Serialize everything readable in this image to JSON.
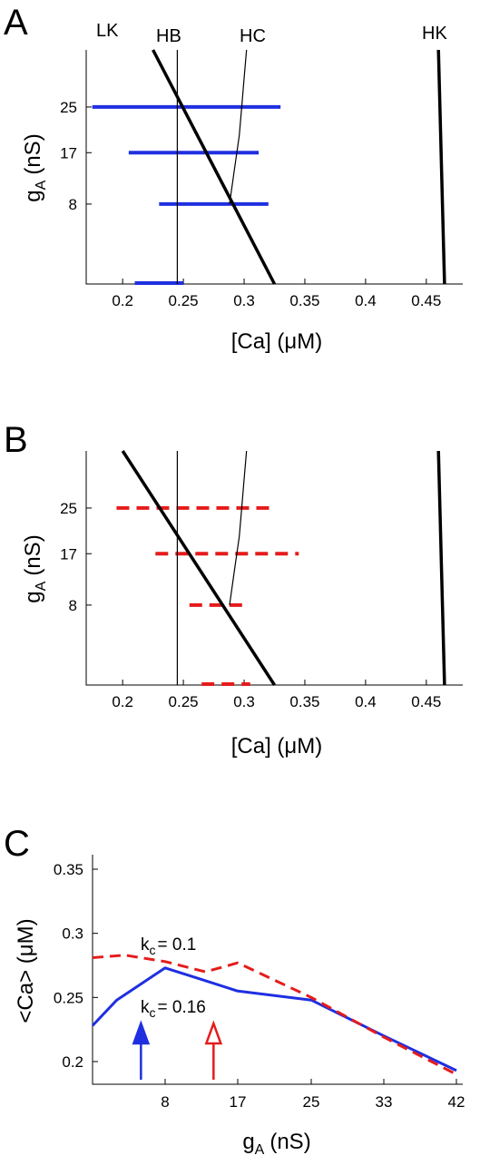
{
  "panels": {
    "A": {
      "letter": "A",
      "xlabel": "[Ca] (μM)",
      "ylabel_main": "g",
      "ylabel_sub": "A",
      "ylabel_unit": "(nS)",
      "xlim": [
        0.17,
        0.48
      ],
      "xticks": [
        "0.2",
        "0.25",
        "0.3",
        "0.35",
        "0.4",
        "0.45"
      ],
      "ylim": [
        -6,
        35
      ],
      "yticks": [
        "25",
        "17",
        "8"
      ],
      "curve_labels": {
        "LK": "LK",
        "HB": "HB",
        "HC": "HC",
        "HK": "HK"
      }
    },
    "B": {
      "letter": "B",
      "xlabel": "[Ca] (μM)",
      "ylabel_main": "g",
      "ylabel_sub": "A",
      "ylabel_unit": "(nS)",
      "xlim": [
        0.17,
        0.48
      ],
      "xticks": [
        "0.2",
        "0.25",
        "0.3",
        "0.35",
        "0.4",
        "0.45"
      ],
      "ylim": [
        -6,
        35
      ],
      "yticks": [
        "25",
        "17",
        "8"
      ]
    },
    "C": {
      "letter": "C",
      "xlabel_main": "g",
      "xlabel_sub": "A",
      "xlabel_unit": "(nS)",
      "ylabel": "<Ca> (μM)",
      "xticks": [
        "8",
        "17",
        "25",
        "33",
        "42"
      ],
      "yticks": [
        "0.35",
        "0.3",
        "0.25",
        "0.2"
      ],
      "kc_label_1_main": "k",
      "kc_label_1_sub": "c",
      "kc_label_1_value": "= 0.1",
      "kc_label_2_main": "k",
      "kc_label_2_sub": "c",
      "kc_label_2_value": "= 0.16"
    }
  },
  "colors": {
    "blue": "#1f2fe0",
    "red": "#e51c1c",
    "black": "#000000"
  },
  "chart_data": [
    {
      "type": "line",
      "panel": "A",
      "title": "",
      "xlabel": "[Ca] (μM)",
      "ylabel": "gA (nS)",
      "xlim": [
        0.17,
        0.48
      ],
      "ylim": [
        -6,
        35
      ],
      "grid": false,
      "curves": [
        {
          "name": "LK",
          "weight": "thick",
          "x": [
            0.325,
            0.225
          ],
          "y": [
            -6,
            35
          ]
        },
        {
          "name": "HB",
          "weight": "thin",
          "x": [
            0.245,
            0.245
          ],
          "y": [
            -6,
            35
          ]
        },
        {
          "name": "HC",
          "weight": "thin",
          "x": [
            0.288,
            0.292,
            0.296,
            0.298,
            0.3,
            0.302
          ],
          "y": [
            8,
            14,
            20,
            25,
            30,
            35
          ]
        },
        {
          "name": "HK",
          "weight": "thick",
          "x": [
            0.465,
            0.46
          ],
          "y": [
            -6,
            35
          ]
        }
      ],
      "bars": [
        {
          "y": 25,
          "x_start": 0.175,
          "x_end": 0.33
        },
        {
          "y": 17,
          "x_start": 0.205,
          "x_end": 0.312
        },
        {
          "y": 8,
          "x_start": 0.23,
          "x_end": 0.32
        },
        {
          "y": -6,
          "x_start": 0.21,
          "x_end": 0.25
        }
      ]
    },
    {
      "type": "line",
      "panel": "B",
      "title": "",
      "xlabel": "[Ca] (μM)",
      "ylabel": "gA (nS)",
      "xlim": [
        0.17,
        0.48
      ],
      "ylim": [
        -6,
        35
      ],
      "grid": false,
      "curves": [
        {
          "name": "LK",
          "weight": "thick",
          "x": [
            0.325,
            0.2
          ],
          "y": [
            -6,
            35
          ]
        },
        {
          "name": "HB",
          "weight": "thin",
          "x": [
            0.245,
            0.245
          ],
          "y": [
            -6,
            35
          ]
        },
        {
          "name": "HC",
          "weight": "thin",
          "x": [
            0.288,
            0.292,
            0.296,
            0.298,
            0.3,
            0.302
          ],
          "y": [
            8,
            14,
            20,
            25,
            30,
            35
          ]
        },
        {
          "name": "HK",
          "weight": "thick",
          "x": [
            0.465,
            0.46
          ],
          "y": [
            -6,
            35
          ]
        }
      ],
      "bars": [
        {
          "y": 25,
          "x_start": 0.195,
          "x_end": 0.325
        },
        {
          "y": 17,
          "x_start": 0.227,
          "x_end": 0.345
        },
        {
          "y": 8,
          "x_start": 0.255,
          "x_end": 0.3
        },
        {
          "y": -6,
          "x_start": 0.265,
          "x_end": 0.305
        }
      ]
    },
    {
      "type": "line",
      "panel": "C",
      "title": "",
      "xlabel": "gA (nS)",
      "ylabel": "<Ca> (μM)",
      "xlim": [
        -1,
        42
      ],
      "ylim": [
        0.18,
        0.36
      ],
      "grid": false,
      "series": [
        {
          "name": "kc = 0.16",
          "style": "solid",
          "color": "blue",
          "x": [
            -1,
            2,
            8,
            12,
            17,
            25,
            33,
            42
          ],
          "y": [
            0.228,
            0.248,
            0.273,
            0.265,
            0.255,
            0.248,
            0.22,
            0.193
          ]
        },
        {
          "name": "kc = 0.1",
          "style": "dashed",
          "color": "red",
          "x": [
            -1,
            3,
            8,
            13,
            17,
            25,
            33,
            42
          ],
          "y": [
            0.281,
            0.283,
            0.278,
            0.27,
            0.277,
            0.25,
            0.219,
            0.19
          ]
        }
      ],
      "arrows": [
        {
          "x": 5,
          "style": "filled",
          "color": "blue"
        },
        {
          "x": 14,
          "style": "open",
          "color": "red"
        }
      ]
    }
  ]
}
